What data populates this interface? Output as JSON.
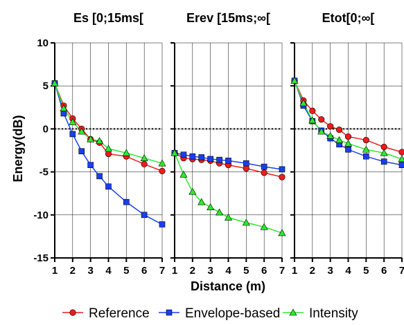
{
  "chart_data": [
    {
      "type": "line",
      "title": "Es [0;15ms[",
      "x": [
        1,
        1.5,
        2,
        2.5,
        3,
        3.5,
        4,
        5,
        6,
        7
      ],
      "series": [
        {
          "name": "Reference",
          "values": [
            5.3,
            2.7,
            1.2,
            0.0,
            -1.2,
            -1.6,
            -2.9,
            -3.2,
            -4.1,
            -4.9
          ]
        },
        {
          "name": "Envelope-based",
          "values": [
            5.3,
            1.8,
            -0.6,
            -2.6,
            -4.2,
            -5.5,
            -6.7,
            -8.5,
            -10.0,
            -11.1
          ]
        },
        {
          "name": "Intensity",
          "values": [
            5.3,
            2.4,
            0.8,
            -0.3,
            -1.2,
            -1.4,
            -2.3,
            -2.8,
            -3.4,
            -4.0
          ]
        }
      ]
    },
    {
      "type": "line",
      "title": "Erev [15ms;∞[",
      "x": [
        1,
        1.5,
        2,
        2.5,
        3,
        3.5,
        4,
        5,
        6,
        7
      ],
      "series": [
        {
          "name": "Reference",
          "values": [
            -2.8,
            -3.4,
            -3.5,
            -3.6,
            -3.7,
            -4.0,
            -4.2,
            -4.6,
            -5.1,
            -5.6
          ]
        },
        {
          "name": "Envelope-based",
          "values": [
            -2.8,
            -3.0,
            -3.2,
            -3.3,
            -3.5,
            -3.6,
            -3.7,
            -4.0,
            -4.4,
            -4.7
          ]
        },
        {
          "name": "Intensity",
          "values": [
            -2.8,
            -5.3,
            -7.3,
            -8.5,
            -9.1,
            -9.7,
            -10.3,
            -10.9,
            -11.4,
            -12.1
          ]
        }
      ]
    },
    {
      "type": "line",
      "title": "Etot[0;∞[",
      "x": [
        1,
        1.5,
        2,
        2.5,
        3,
        3.5,
        4,
        5,
        6,
        7
      ],
      "series": [
        {
          "name": "Reference",
          "values": [
            5.6,
            3.3,
            2.1,
            1.1,
            0.3,
            -0.1,
            -0.9,
            -1.3,
            -2.1,
            -2.7
          ]
        },
        {
          "name": "Envelope-based",
          "values": [
            5.6,
            2.7,
            0.9,
            -0.2,
            -1.1,
            -1.8,
            -2.4,
            -3.2,
            -3.8,
            -4.2
          ]
        },
        {
          "name": "Intensity",
          "values": [
            5.6,
            3.0,
            1.0,
            -0.3,
            -0.8,
            -1.3,
            -1.7,
            -2.4,
            -2.8,
            -3.5
          ]
        }
      ]
    }
  ],
  "axes": {
    "xlabel": "Distance (m)",
    "ylabel": "Energy(dB)",
    "ylim": [
      -15,
      10
    ],
    "xlim": [
      1,
      7
    ],
    "yticks": [
      "10",
      "5",
      "0",
      "-5",
      "-10",
      "-15"
    ],
    "xticks": [
      "1",
      "2",
      "3",
      "4",
      "5",
      "6",
      "7"
    ],
    "grid": true,
    "zero_line": "dotted"
  },
  "legend": {
    "placement": "bottom",
    "items": [
      {
        "label": "Reference",
        "color": "#ee1c1c",
        "marker": "circle"
      },
      {
        "label": "Envelope-based",
        "color": "#1a3ff0",
        "marker": "square"
      },
      {
        "label": "Intensity",
        "color": "#2ee82e",
        "marker": "triangle"
      }
    ]
  }
}
